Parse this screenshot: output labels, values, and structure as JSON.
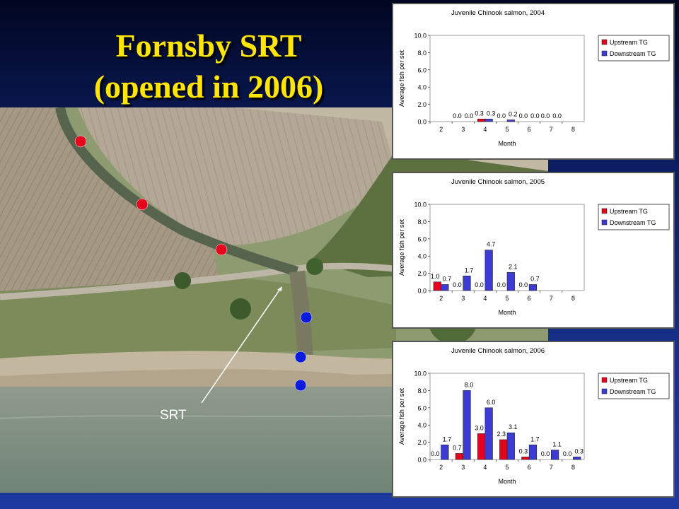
{
  "slide": {
    "title_line1": "Fornsby SRT",
    "title_line2": "(opened in 2006)",
    "srt_label": "SRT"
  },
  "map_markers": {
    "upstream_color": "#e8001c",
    "downstream_color": "#0a1be0",
    "upstream_count": 3,
    "downstream_count": 3
  },
  "colors": {
    "title": "#ffe600",
    "upstream_bar": "#e8001c",
    "downstream_bar": "#3c3cd2"
  },
  "chart_data": [
    {
      "type": "bar",
      "title": "Juvenile Chinook salmon, 2004",
      "xlabel": "Month",
      "ylabel": "Average fish per set",
      "categories": [
        "2",
        "3",
        "4",
        "5",
        "6",
        "7",
        "8"
      ],
      "ylim": [
        0,
        10
      ],
      "yticks": [
        "0.0",
        "2.0",
        "4.0",
        "6.0",
        "8.0",
        "10.0"
      ],
      "legend_position": "top-right",
      "series": [
        {
          "name": "Upstream TG",
          "color": "#e8001c",
          "values": [
            null,
            0.0,
            0.3,
            0.0,
            0.0,
            0.0,
            null
          ],
          "labels": [
            "",
            "0.0",
            "0.3",
            "0.0",
            "0.0",
            "0.0",
            ""
          ]
        },
        {
          "name": "Downstream TG",
          "color": "#3c3cd2",
          "values": [
            null,
            0.0,
            0.3,
            0.2,
            0.0,
            0.0,
            null
          ],
          "labels": [
            "",
            "0.0",
            "0.3",
            "0.2",
            "0.0",
            "0.0",
            ""
          ]
        }
      ]
    },
    {
      "type": "bar",
      "title": "Juvenile Chinook salmon, 2005",
      "xlabel": "Month",
      "ylabel": "Average fish per set",
      "categories": [
        "2",
        "3",
        "4",
        "5",
        "6",
        "7",
        "8"
      ],
      "ylim": [
        0,
        10
      ],
      "yticks": [
        "0.0",
        "2.0",
        "4.0",
        "6.0",
        "8.0",
        "10.0"
      ],
      "legend_position": "top-right",
      "series": [
        {
          "name": "Upstream TG",
          "color": "#e8001c",
          "values": [
            1.0,
            0.0,
            0.0,
            0.0,
            0.0,
            null,
            null
          ],
          "labels": [
            "1.0",
            "0.0",
            "0.0",
            "0.0",
            "0.0",
            "",
            ""
          ]
        },
        {
          "name": "Downstream TG",
          "color": "#3c3cd2",
          "values": [
            0.7,
            1.7,
            4.7,
            2.1,
            0.7,
            null,
            null
          ],
          "labels": [
            "0.7",
            "1.7",
            "4.7",
            "2.1",
            "0.7",
            "",
            ""
          ]
        }
      ]
    },
    {
      "type": "bar",
      "title": "Juvenile Chinook salmon, 2006",
      "xlabel": "Month",
      "ylabel": "Average fish per set",
      "categories": [
        "2",
        "3",
        "4",
        "5",
        "6",
        "7",
        "8"
      ],
      "ylim": [
        0,
        10
      ],
      "yticks": [
        "0.0",
        "2.0",
        "4.0",
        "6.0",
        "8.0",
        "10.0"
      ],
      "legend_position": "top-right",
      "series": [
        {
          "name": "Upstream TG",
          "color": "#e8001c",
          "values": [
            0.0,
            0.7,
            3.0,
            2.3,
            0.3,
            0.0,
            0.0
          ],
          "labels": [
            "0.0",
            "0.7",
            "3.0",
            "2.3",
            "0.3",
            "0.0",
            "0.0"
          ]
        },
        {
          "name": "Downstream TG",
          "color": "#3c3cd2",
          "values": [
            1.7,
            8.0,
            6.0,
            3.1,
            1.7,
            1.1,
            0.3
          ],
          "labels": [
            "1.7",
            "8.0",
            "6.0",
            "3.1",
            "1.7",
            "1.1",
            "0.3"
          ]
        }
      ]
    }
  ]
}
